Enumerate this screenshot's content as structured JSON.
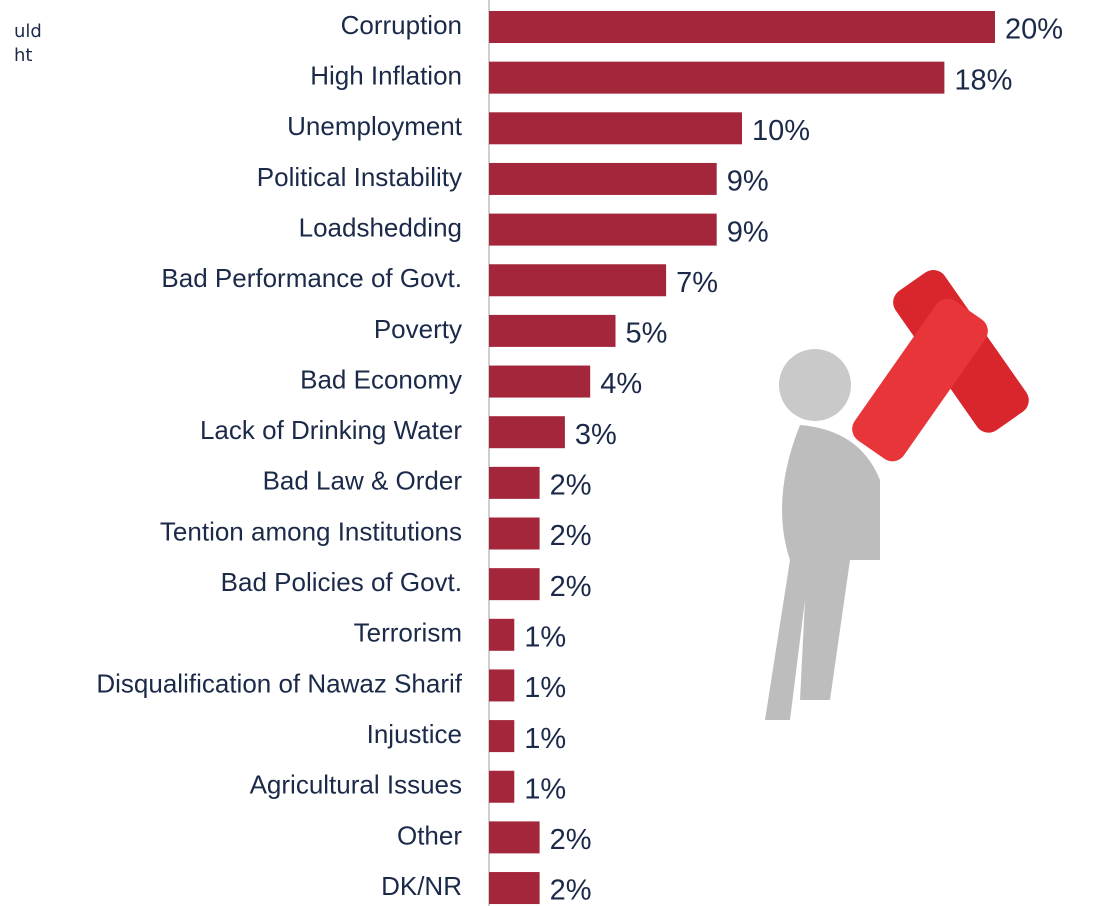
{
  "chart_data": {
    "type": "bar",
    "orientation": "horizontal",
    "annotations": [
      "uld",
      "ht"
    ],
    "categories": [
      "Corruption",
      "High Inflation",
      "Unemployment",
      "Political Instability",
      "Loadshedding",
      "Bad Performance of Govt.",
      "Poverty",
      "Bad Economy",
      "Lack of Drinking Water",
      "Bad Law & Order",
      "Tention among Institutions",
      "Bad Policies of Govt.",
      "Terrorism",
      "Disqualification of Nawaz Sharif",
      "Injustice",
      "Agricultural Issues",
      "Other",
      "DK/NR"
    ],
    "values": [
      20,
      18,
      10,
      9,
      9,
      7,
      5,
      4,
      3,
      2,
      2,
      2,
      1,
      1,
      1,
      1,
      2,
      2
    ],
    "value_labels": [
      "20%",
      "18%",
      "10%",
      "9%",
      "9%",
      "7%",
      "5%",
      "4%",
      "3%",
      "2%",
      "2%",
      "2%",
      "1%",
      "1%",
      "1%",
      "1%",
      "2%",
      "2%"
    ],
    "color": "#a3263a"
  }
}
